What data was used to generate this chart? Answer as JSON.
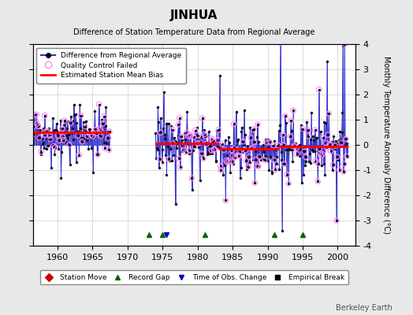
{
  "title": "JINHUA",
  "subtitle": "Difference of Station Temperature Data from Regional Average",
  "ylabel": "Monthly Temperature Anomaly Difference (°C)",
  "xlabel_years": [
    1960,
    1965,
    1970,
    1975,
    1980,
    1985,
    1990,
    1995,
    2000
  ],
  "ylim": [
    -4,
    4
  ],
  "xlim": [
    1956.5,
    2002.5
  ],
  "background_color": "#e8e8e8",
  "plot_bg_color": "#ffffff",
  "grid_color": "#cccccc",
  "line_color": "#3333cc",
  "bias_color": "#ff0000",
  "qc_fail_color": "#ff88ff",
  "dot_color": "#000000",
  "station_move_color": "#cc0000",
  "record_gap_color": "#006600",
  "obs_change_color": "#0000cc",
  "empirical_break_color": "#000000",
  "watermark": "Berkeley Earth",
  "segments": [
    {
      "start": 1956.5,
      "end": 1967.4,
      "bias": 0.5
    },
    {
      "start": 1974.0,
      "end": 1983.0,
      "bias": 0.05
    },
    {
      "start": 1983.0,
      "end": 1991.5,
      "bias": -0.15
    },
    {
      "start": 1991.5,
      "end": 2001.5,
      "bias": -0.05
    }
  ],
  "record_gap_years": [
    1973,
    1975,
    1981,
    1991,
    1995
  ],
  "obs_change_years": [
    1975.5
  ],
  "seed": 42
}
